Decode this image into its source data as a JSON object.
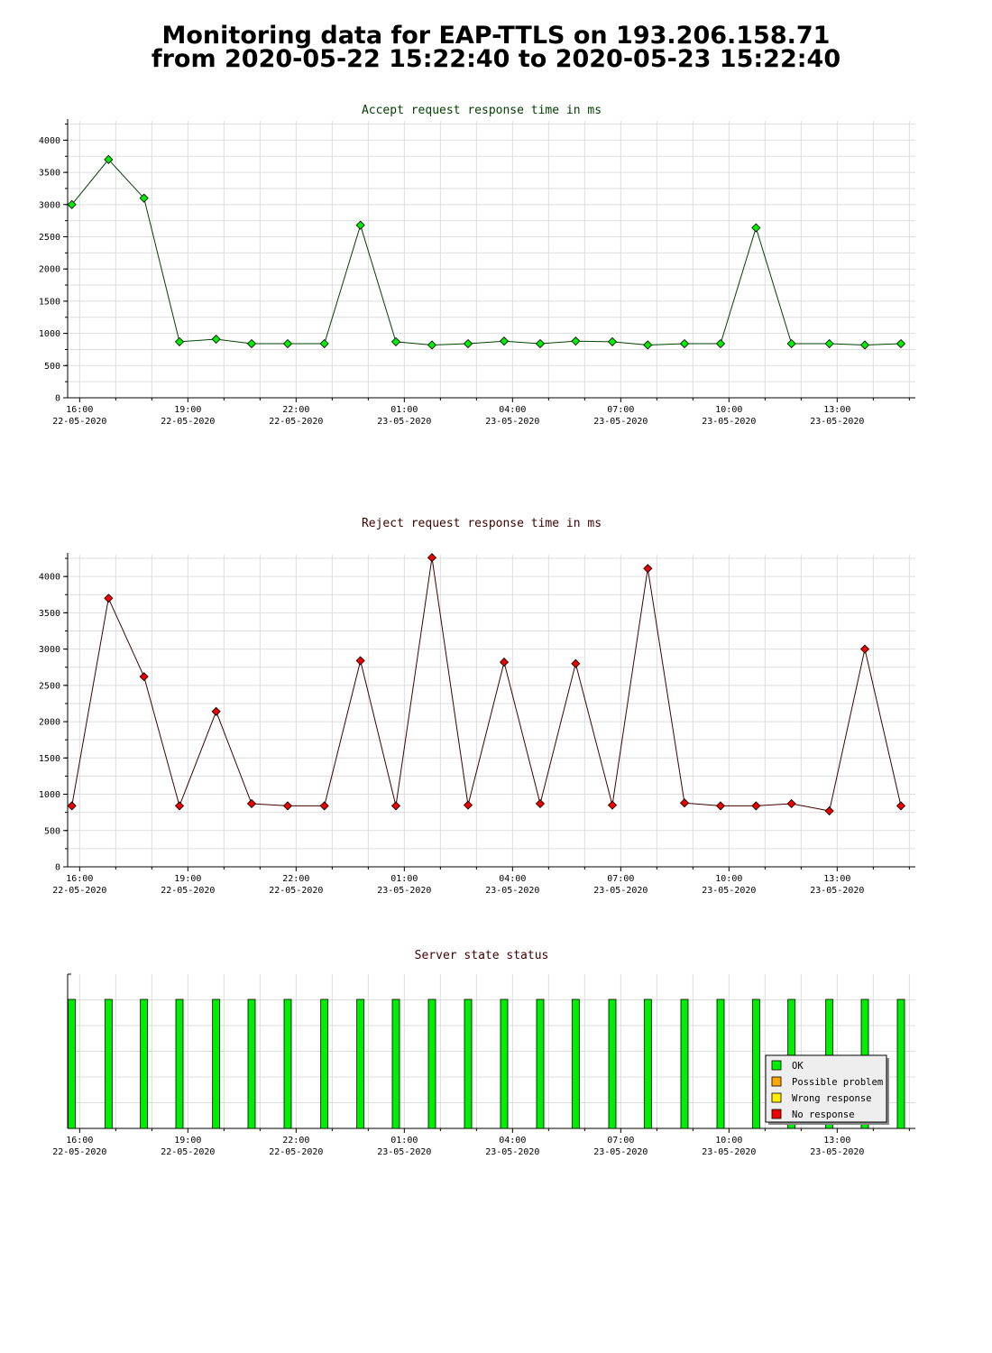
{
  "page_title_line1": "Monitoring data for EAP-TTLS on 193.206.158.71",
  "page_title_line2": "from 2020-05-22 15:22:40 to 2020-05-23 15:22:40",
  "colors": {
    "accept_line": "#004000",
    "accept_marker": "#00ee00",
    "reject_line": "#400000",
    "reject_marker": "#ee0000",
    "accept_title": "#004000",
    "reject_title": "#400000",
    "status_title": "#400000",
    "ok": "#00ee00",
    "possible_problem": "#ffa500",
    "wrong_response": "#ffee00",
    "no_response": "#ee0000",
    "grid": "#dddddd"
  },
  "x_ticks": [
    {
      "time": "16:00",
      "date": "22-05-2020"
    },
    {
      "time": "19:00",
      "date": "22-05-2020"
    },
    {
      "time": "22:00",
      "date": "22-05-2020"
    },
    {
      "time": "01:00",
      "date": "23-05-2020"
    },
    {
      "time": "04:00",
      "date": "23-05-2020"
    },
    {
      "time": "07:00",
      "date": "23-05-2020"
    },
    {
      "time": "10:00",
      "date": "23-05-2020"
    },
    {
      "time": "13:00",
      "date": "23-05-2020"
    }
  ],
  "chart_data": [
    {
      "type": "line",
      "title": "Accept request response time in ms",
      "xlabel": "",
      "ylabel": "",
      "ylim": [
        0,
        4300
      ],
      "y_ticks": [
        0,
        500,
        1000,
        1500,
        2000,
        2500,
        3000,
        3500,
        4000
      ],
      "x_range_hours": [
        "2020-05-22 15:40",
        "2020-05-23 15:10"
      ],
      "grid": true,
      "x": [
        "2020-05-22 15:47",
        "2020-05-22 16:48",
        "2020-05-22 17:47",
        "2020-05-22 18:46",
        "2020-05-22 19:47",
        "2020-05-22 20:46",
        "2020-05-22 21:46",
        "2020-05-22 22:47",
        "2020-05-22 23:47",
        "2020-05-23 00:46",
        "2020-05-23 01:46",
        "2020-05-23 02:46",
        "2020-05-23 03:46",
        "2020-05-23 04:46",
        "2020-05-23 05:45",
        "2020-05-23 06:46",
        "2020-05-23 07:45",
        "2020-05-23 08:46",
        "2020-05-23 09:46",
        "2020-05-23 10:45",
        "2020-05-23 11:44",
        "2020-05-23 12:47",
        "2020-05-23 13:46",
        "2020-05-23 14:46"
      ],
      "values": [
        3000,
        3700,
        3100,
        870,
        910,
        840,
        840,
        840,
        2680,
        870,
        820,
        840,
        880,
        840,
        880,
        870,
        820,
        840,
        840,
        2640,
        840,
        840,
        820,
        840
      ]
    },
    {
      "type": "line",
      "title": "Reject request response time in ms",
      "xlabel": "",
      "ylabel": "",
      "ylim": [
        0,
        4300
      ],
      "y_ticks": [
        0,
        500,
        1000,
        1500,
        2000,
        2500,
        3000,
        3500,
        4000
      ],
      "grid": true,
      "x": [
        "2020-05-22 15:47",
        "2020-05-22 16:48",
        "2020-05-22 17:47",
        "2020-05-22 18:46",
        "2020-05-22 19:47",
        "2020-05-22 20:46",
        "2020-05-22 21:46",
        "2020-05-22 22:47",
        "2020-05-22 23:47",
        "2020-05-23 00:46",
        "2020-05-23 01:46",
        "2020-05-23 02:46",
        "2020-05-23 03:46",
        "2020-05-23 04:46",
        "2020-05-23 05:45",
        "2020-05-23 06:46",
        "2020-05-23 07:45",
        "2020-05-23 08:46",
        "2020-05-23 09:46",
        "2020-05-23 10:45",
        "2020-05-23 11:44",
        "2020-05-23 12:47",
        "2020-05-23 13:46",
        "2020-05-23 14:46"
      ],
      "values": [
        840,
        3700,
        2620,
        840,
        2140,
        870,
        840,
        840,
        2840,
        840,
        4260,
        850,
        2820,
        870,
        2800,
        850,
        4110,
        880,
        840,
        840,
        870,
        770,
        3000,
        840
      ]
    },
    {
      "type": "bar",
      "title": "Server state status",
      "grid": true,
      "x": [
        "2020-05-22 15:47",
        "2020-05-22 16:48",
        "2020-05-22 17:47",
        "2020-05-22 18:46",
        "2020-05-22 19:47",
        "2020-05-22 20:46",
        "2020-05-22 21:46",
        "2020-05-22 22:47",
        "2020-05-22 23:47",
        "2020-05-23 00:46",
        "2020-05-23 01:46",
        "2020-05-23 02:46",
        "2020-05-23 03:46",
        "2020-05-23 04:46",
        "2020-05-23 05:45",
        "2020-05-23 06:46",
        "2020-05-23 07:45",
        "2020-05-23 08:46",
        "2020-05-23 09:46",
        "2020-05-23 10:45",
        "2020-05-23 11:44",
        "2020-05-23 12:47",
        "2020-05-23 13:46",
        "2020-05-23 14:46"
      ],
      "status": [
        "OK",
        "OK",
        "OK",
        "OK",
        "OK",
        "OK",
        "OK",
        "OK",
        "OK",
        "OK",
        "OK",
        "OK",
        "OK",
        "OK",
        "OK",
        "OK",
        "OK",
        "OK",
        "OK",
        "OK",
        "OK",
        "OK",
        "OK",
        "OK"
      ],
      "legend_position": "bottom-right",
      "legend": [
        {
          "label": "OK",
          "color": "#00ee00"
        },
        {
          "label": "Possible problem",
          "color": "#ffa500"
        },
        {
          "label": "Wrong response",
          "color": "#ffee00"
        },
        {
          "label": "No response",
          "color": "#ee0000"
        }
      ]
    }
  ]
}
